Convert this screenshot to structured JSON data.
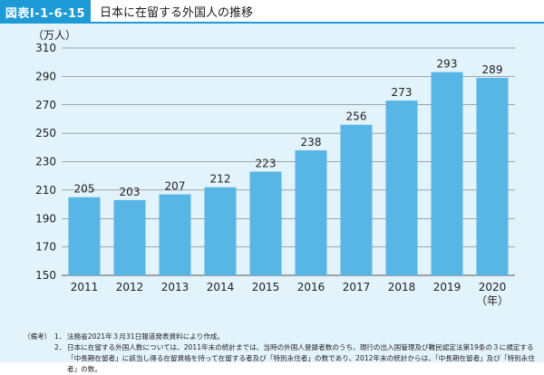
{
  "header": {
    "tag": "図表Ⅰ-1-6-15",
    "title": "日本に在留する外国人の推移"
  },
  "colors": {
    "accent": "#1e9ad6",
    "bar": "#57b6e6",
    "panel_bg": "#e3f3fb",
    "grid": "#555555"
  },
  "chart_data": {
    "type": "bar",
    "title": "日本に在留する外国人の推移",
    "ylabel": "（万人）",
    "xlabel": "（年）",
    "ylim": [
      150,
      310
    ],
    "yticks": [
      150,
      170,
      190,
      210,
      230,
      250,
      270,
      290,
      310
    ],
    "grid": true,
    "categories": [
      "2011",
      "2012",
      "2013",
      "2014",
      "2015",
      "2016",
      "2017",
      "2018",
      "2019",
      "2020"
    ],
    "values": [
      205,
      203,
      207,
      212,
      223,
      238,
      256,
      273,
      293,
      289
    ]
  },
  "notes": {
    "label": "（備考）",
    "items": [
      {
        "num": "1．",
        "text": "法務省2021年３月31日報道発表資料により作成。"
      },
      {
        "num": "2．",
        "text": "日本に在留する外国人数については、2011年末の統計までは、当時の外国人登録者数のうち、現行の出入国管理及び難民認定法第19条の３に規定する「中長期在留者」に該当し得る在留資格を持って在留する者及び「特別永住者」の数であり、2012年末の統計からは、「中長期在留者」及び「特別永住者」の数。"
      }
    ]
  }
}
